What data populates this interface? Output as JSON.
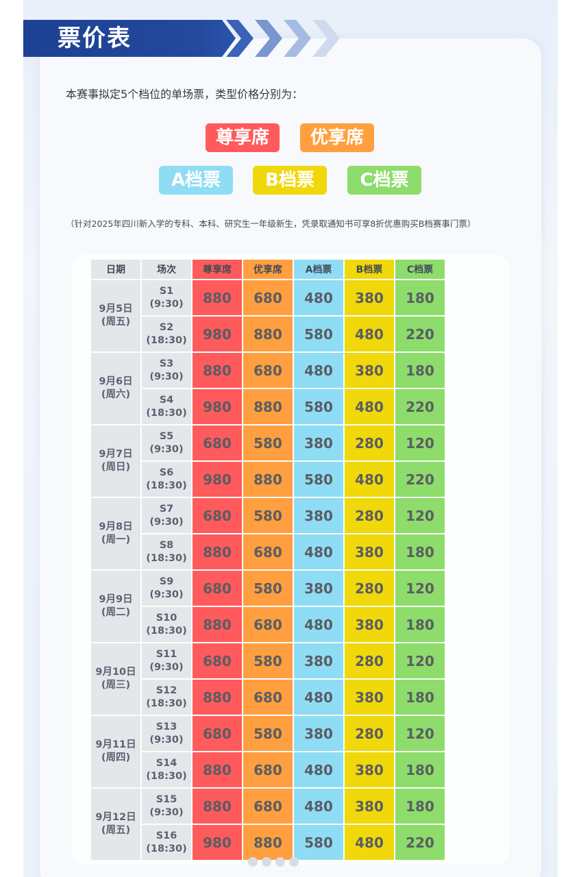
{
  "header": {
    "title": "票价表"
  },
  "intro": "本赛事拟定5个档位的单场票，类型价格分别为：",
  "tiers": [
    {
      "label": "尊享席",
      "color": "#ff5a5c"
    },
    {
      "label": "优享席",
      "color": "#ff9f3f"
    },
    {
      "label": "A档票",
      "color": "#8fdcf5"
    },
    {
      "label": "B档票",
      "color": "#f0d80a"
    },
    {
      "label": "C档票",
      "color": "#8ddc6c"
    }
  ],
  "note": "（针对2025年四川新入学的专科、本科、研究生一年级新生，凭录取通知书可享8折优惠购买B档赛事门票）",
  "table": {
    "headers": [
      "日期",
      "场次",
      "尊享席",
      "优享席",
      "A档票",
      "B档票",
      "C档票"
    ],
    "days": [
      {
        "date": "9月5日",
        "weekday": "(周五)",
        "sessions": [
          {
            "code": "S1",
            "time": "(9:30)",
            "prices": [
              "880",
              "680",
              "480",
              "380",
              "180"
            ]
          },
          {
            "code": "S2",
            "time": "(18:30)",
            "prices": [
              "980",
              "880",
              "580",
              "480",
              "220"
            ]
          }
        ]
      },
      {
        "date": "9月6日",
        "weekday": "(周六)",
        "sessions": [
          {
            "code": "S3",
            "time": "(9:30)",
            "prices": [
              "880",
              "680",
              "480",
              "380",
              "180"
            ]
          },
          {
            "code": "S4",
            "time": "(18:30)",
            "prices": [
              "980",
              "880",
              "580",
              "480",
              "220"
            ]
          }
        ]
      },
      {
        "date": "9月7日",
        "weekday": "(周日)",
        "sessions": [
          {
            "code": "S5",
            "time": "(9:30)",
            "prices": [
              "680",
              "580",
              "380",
              "280",
              "120"
            ]
          },
          {
            "code": "S6",
            "time": "(18:30)",
            "prices": [
              "980",
              "880",
              "580",
              "480",
              "220"
            ]
          }
        ]
      },
      {
        "date": "9月8日",
        "weekday": "(周一)",
        "sessions": [
          {
            "code": "S7",
            "time": "(9:30)",
            "prices": [
              "680",
              "580",
              "380",
              "280",
              "120"
            ]
          },
          {
            "code": "S8",
            "time": "(18:30)",
            "prices": [
              "880",
              "680",
              "480",
              "380",
              "180"
            ]
          }
        ]
      },
      {
        "date": "9月9日",
        "weekday": "(周二)",
        "sessions": [
          {
            "code": "S9",
            "time": "(9:30)",
            "prices": [
              "680",
              "580",
              "380",
              "280",
              "120"
            ]
          },
          {
            "code": "S10",
            "time": "(18:30)",
            "prices": [
              "880",
              "680",
              "480",
              "380",
              "180"
            ]
          }
        ]
      },
      {
        "date": "9月10日",
        "weekday": "(周三)",
        "sessions": [
          {
            "code": "S11",
            "time": "(9:30)",
            "prices": [
              "680",
              "580",
              "380",
              "280",
              "120"
            ]
          },
          {
            "code": "S12",
            "time": "(18:30)",
            "prices": [
              "880",
              "680",
              "480",
              "380",
              "180"
            ]
          }
        ]
      },
      {
        "date": "9月11日",
        "weekday": "(周四)",
        "sessions": [
          {
            "code": "S13",
            "time": "(9:30)",
            "prices": [
              "680",
              "580",
              "380",
              "280",
              "120"
            ]
          },
          {
            "code": "S14",
            "time": "(18:30)",
            "prices": [
              "880",
              "680",
              "480",
              "380",
              "180"
            ]
          }
        ]
      },
      {
        "date": "9月12日",
        "weekday": "(周五)",
        "sessions": [
          {
            "code": "S15",
            "time": "(9:30)",
            "prices": [
              "880",
              "680",
              "480",
              "380",
              "180"
            ]
          },
          {
            "code": "S16",
            "time": "(18:30)",
            "prices": [
              "980",
              "880",
              "580",
              "480",
              "220"
            ]
          }
        ]
      }
    ]
  },
  "colors": {
    "banner": "#1d4193",
    "chevron_light": "#c9d6ee"
  }
}
